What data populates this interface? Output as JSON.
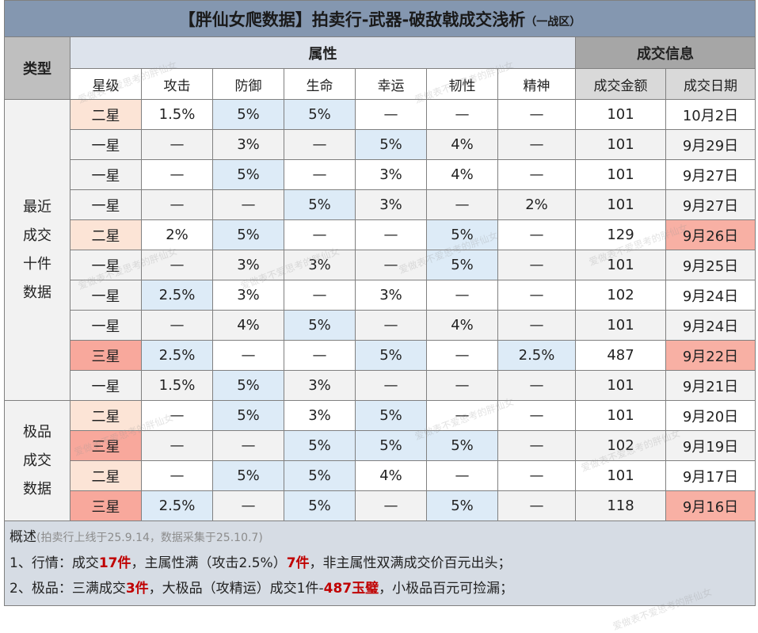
{
  "title": {
    "main": "【胖仙女爬数据】拍卖行-武器-破敌戟成交浅析",
    "sub": "（一战区）"
  },
  "header": {
    "type": "类型",
    "attributes": "属性",
    "trade": "成交信息",
    "columns": [
      "星级",
      "攻击",
      "防御",
      "生命",
      "幸运",
      "韧性",
      "精神",
      "成交金额",
      "成交日期"
    ]
  },
  "groups": [
    {
      "label": [
        "最近",
        "成交",
        "十件",
        "数据"
      ],
      "rows": [
        [
          "二星",
          "1.5%",
          "5%",
          "5%",
          "—",
          "—",
          "—",
          "101",
          "10月2日"
        ],
        [
          "一星",
          "—",
          "3%",
          "—",
          "5%",
          "4%",
          "—",
          "101",
          "9月29日"
        ],
        [
          "一星",
          "—",
          "5%",
          "—",
          "3%",
          "4%",
          "—",
          "101",
          "9月27日"
        ],
        [
          "一星",
          "—",
          "—",
          "5%",
          "3%",
          "—",
          "2%",
          "101",
          "9月27日"
        ],
        [
          "二星",
          "2%",
          "5%",
          "—",
          "—",
          "5%",
          "—",
          "129",
          "9月26日"
        ],
        [
          "一星",
          "—",
          "3%",
          "3%",
          "—",
          "5%",
          "—",
          "101",
          "9月25日"
        ],
        [
          "一星",
          "2.5%",
          "3%",
          "—",
          "3%",
          "—",
          "—",
          "102",
          "9月24日"
        ],
        [
          "一星",
          "—",
          "4%",
          "5%",
          "—",
          "4%",
          "—",
          "101",
          "9月24日"
        ],
        [
          "三星",
          "2.5%",
          "—",
          "—",
          "5%",
          "—",
          "2.5%",
          "487",
          "9月22日"
        ],
        [
          "一星",
          "1.5%",
          "5%",
          "3%",
          "—",
          "—",
          "—",
          "101",
          "9月21日"
        ]
      ]
    },
    {
      "label": [
        "极品",
        "成交",
        "数据"
      ],
      "rows": [
        [
          "二星",
          "—",
          "5%",
          "3%",
          "5%",
          "—",
          "—",
          "101",
          "9月20日"
        ],
        [
          "三星",
          "—",
          "—",
          "5%",
          "5%",
          "5%",
          "—",
          "102",
          "9月19日"
        ],
        [
          "二星",
          "—",
          "5%",
          "5%",
          "4%",
          "—",
          "—",
          "101",
          "9月17日"
        ],
        [
          "三星",
          "2.5%",
          "—",
          "5%",
          "—",
          "5%",
          "—",
          "118",
          "9月16日"
        ]
      ]
    }
  ],
  "summary": {
    "heading": "概述",
    "note": "(拍卖行上线于25.9.14，数据采集于25.10.7)",
    "lines": [
      [
        "1、行情：成交",
        "17件",
        "，主属性满（攻击2.5%）",
        "7件",
        "，非主属性双满成交价百元出头；"
      ],
      [
        "2、极品：三满成交",
        "3件",
        "，大极品（攻精运）成交1件-",
        "487玉璧",
        "，小极品百元可捡漏；"
      ]
    ]
  },
  "watermark": "爱做表不爱思考的胖仙女"
}
